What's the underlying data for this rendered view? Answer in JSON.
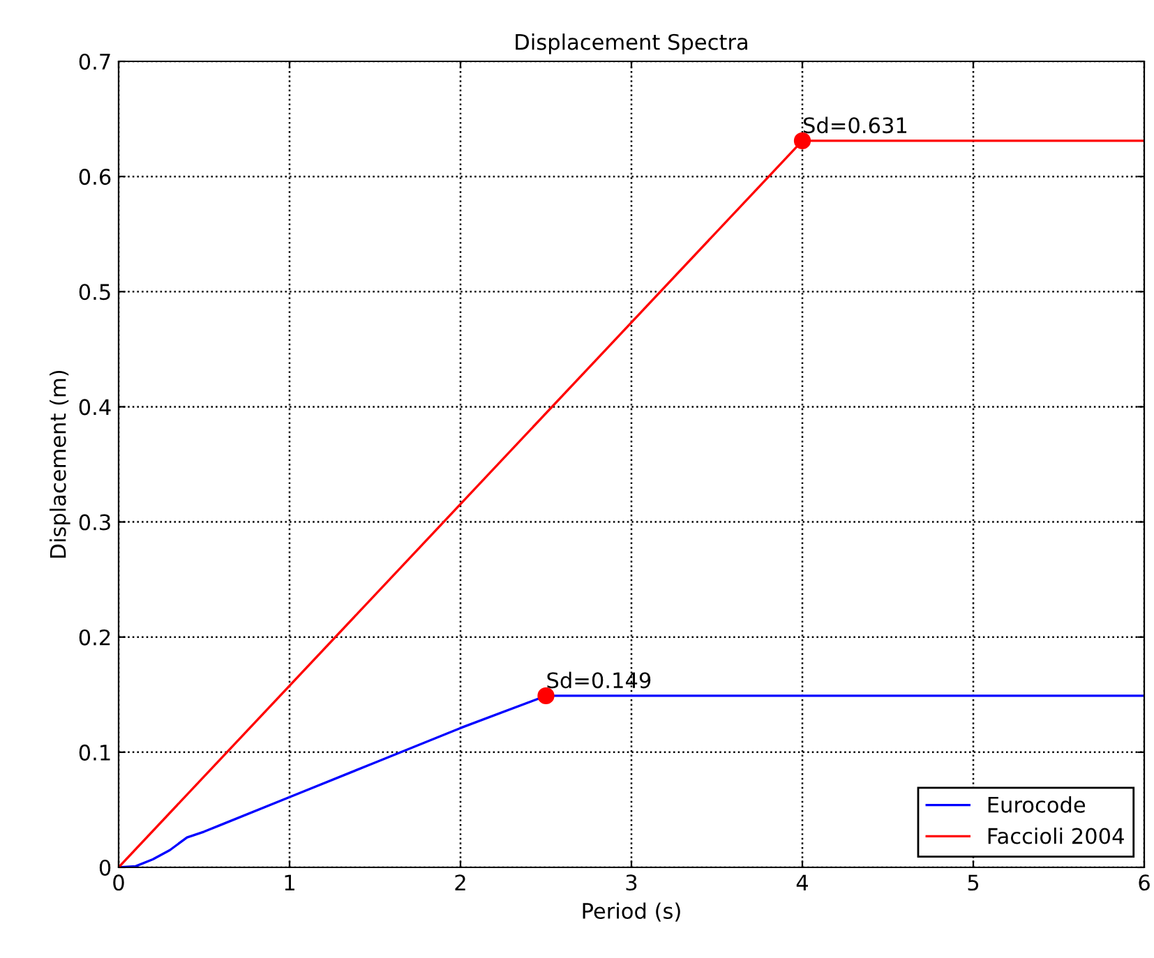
{
  "chart_data": {
    "type": "line",
    "title": "Displacement Spectra",
    "xlabel": "Period (s)",
    "ylabel": "Displacement (m)",
    "series": [
      {
        "name": "Eurocode",
        "color": "#0000ff",
        "x": [
          0,
          0.1,
          0.2,
          0.3,
          0.4,
          0.5,
          0.6,
          1.0,
          1.5,
          2.0,
          2.5,
          6
        ],
        "values": [
          0,
          0.001,
          0.007,
          0.015,
          0.026,
          0.031,
          0.037,
          0.061,
          0.091,
          0.121,
          0.149,
          0.149
        ]
      },
      {
        "name": "Faccioli 2004",
        "color": "#ff0000",
        "x": [
          0,
          4,
          6
        ],
        "values": [
          0,
          0.631,
          0.631
        ]
      },
      {
        "type": "scatter",
        "color": "#ff0000",
        "x": [
          2.5,
          4
        ],
        "values": [
          0.149,
          0.631
        ],
        "marker": "circle"
      }
    ],
    "annotations": [
      {
        "text": "Sd=0.149",
        "x": 2.5,
        "y": 0.149
      },
      {
        "text": "Sd=0.631",
        "x": 4,
        "y": 0.631
      }
    ],
    "xlim": [
      0,
      6
    ],
    "xticks": [
      0,
      1,
      2,
      3,
      4,
      5,
      6
    ],
    "ylim": [
      0,
      0.7
    ],
    "yticks": [
      0,
      0.1,
      0.2,
      0.3,
      0.4,
      0.5,
      0.6,
      0.7
    ],
    "grid": true,
    "legend": "bottom right",
    "line_style": "solid"
  }
}
